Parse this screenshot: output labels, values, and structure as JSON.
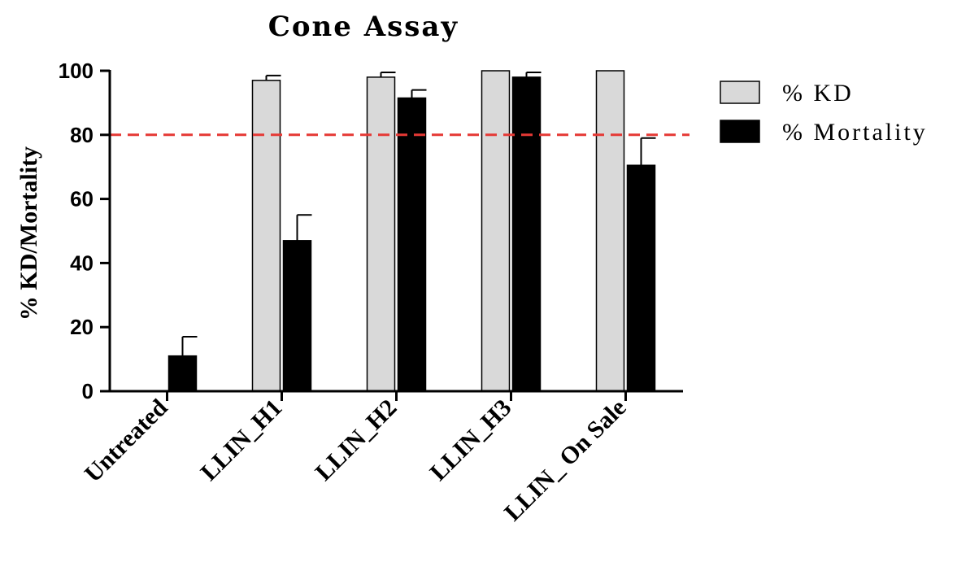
{
  "chart_data": {
    "type": "bar",
    "title": "Cone Assay",
    "xlabel": "",
    "ylabel": "% KD/Mortality",
    "ylim": [
      0,
      100
    ],
    "yticks": [
      0,
      20,
      40,
      60,
      80,
      100
    ],
    "categories": [
      "Untreated",
      "LLIN_H1",
      "LLIN_H2",
      "LLIN_H3",
      "LLIN_ On Sale"
    ],
    "series": [
      {
        "name": "% KD",
        "color": "#d9d9d9",
        "values": [
          0,
          97,
          98,
          100,
          100
        ],
        "error": [
          0,
          1.5,
          1.5,
          0,
          0
        ]
      },
      {
        "name": "% Mortality",
        "color": "#000000",
        "values": [
          11,
          47,
          91.5,
          98,
          70.5
        ],
        "error": [
          6,
          8,
          2.5,
          1.5,
          8.5
        ]
      }
    ],
    "reference_line": {
      "value": 80,
      "color": "#e53935",
      "style": "dashed"
    },
    "legend_position": "right",
    "grid": false
  }
}
